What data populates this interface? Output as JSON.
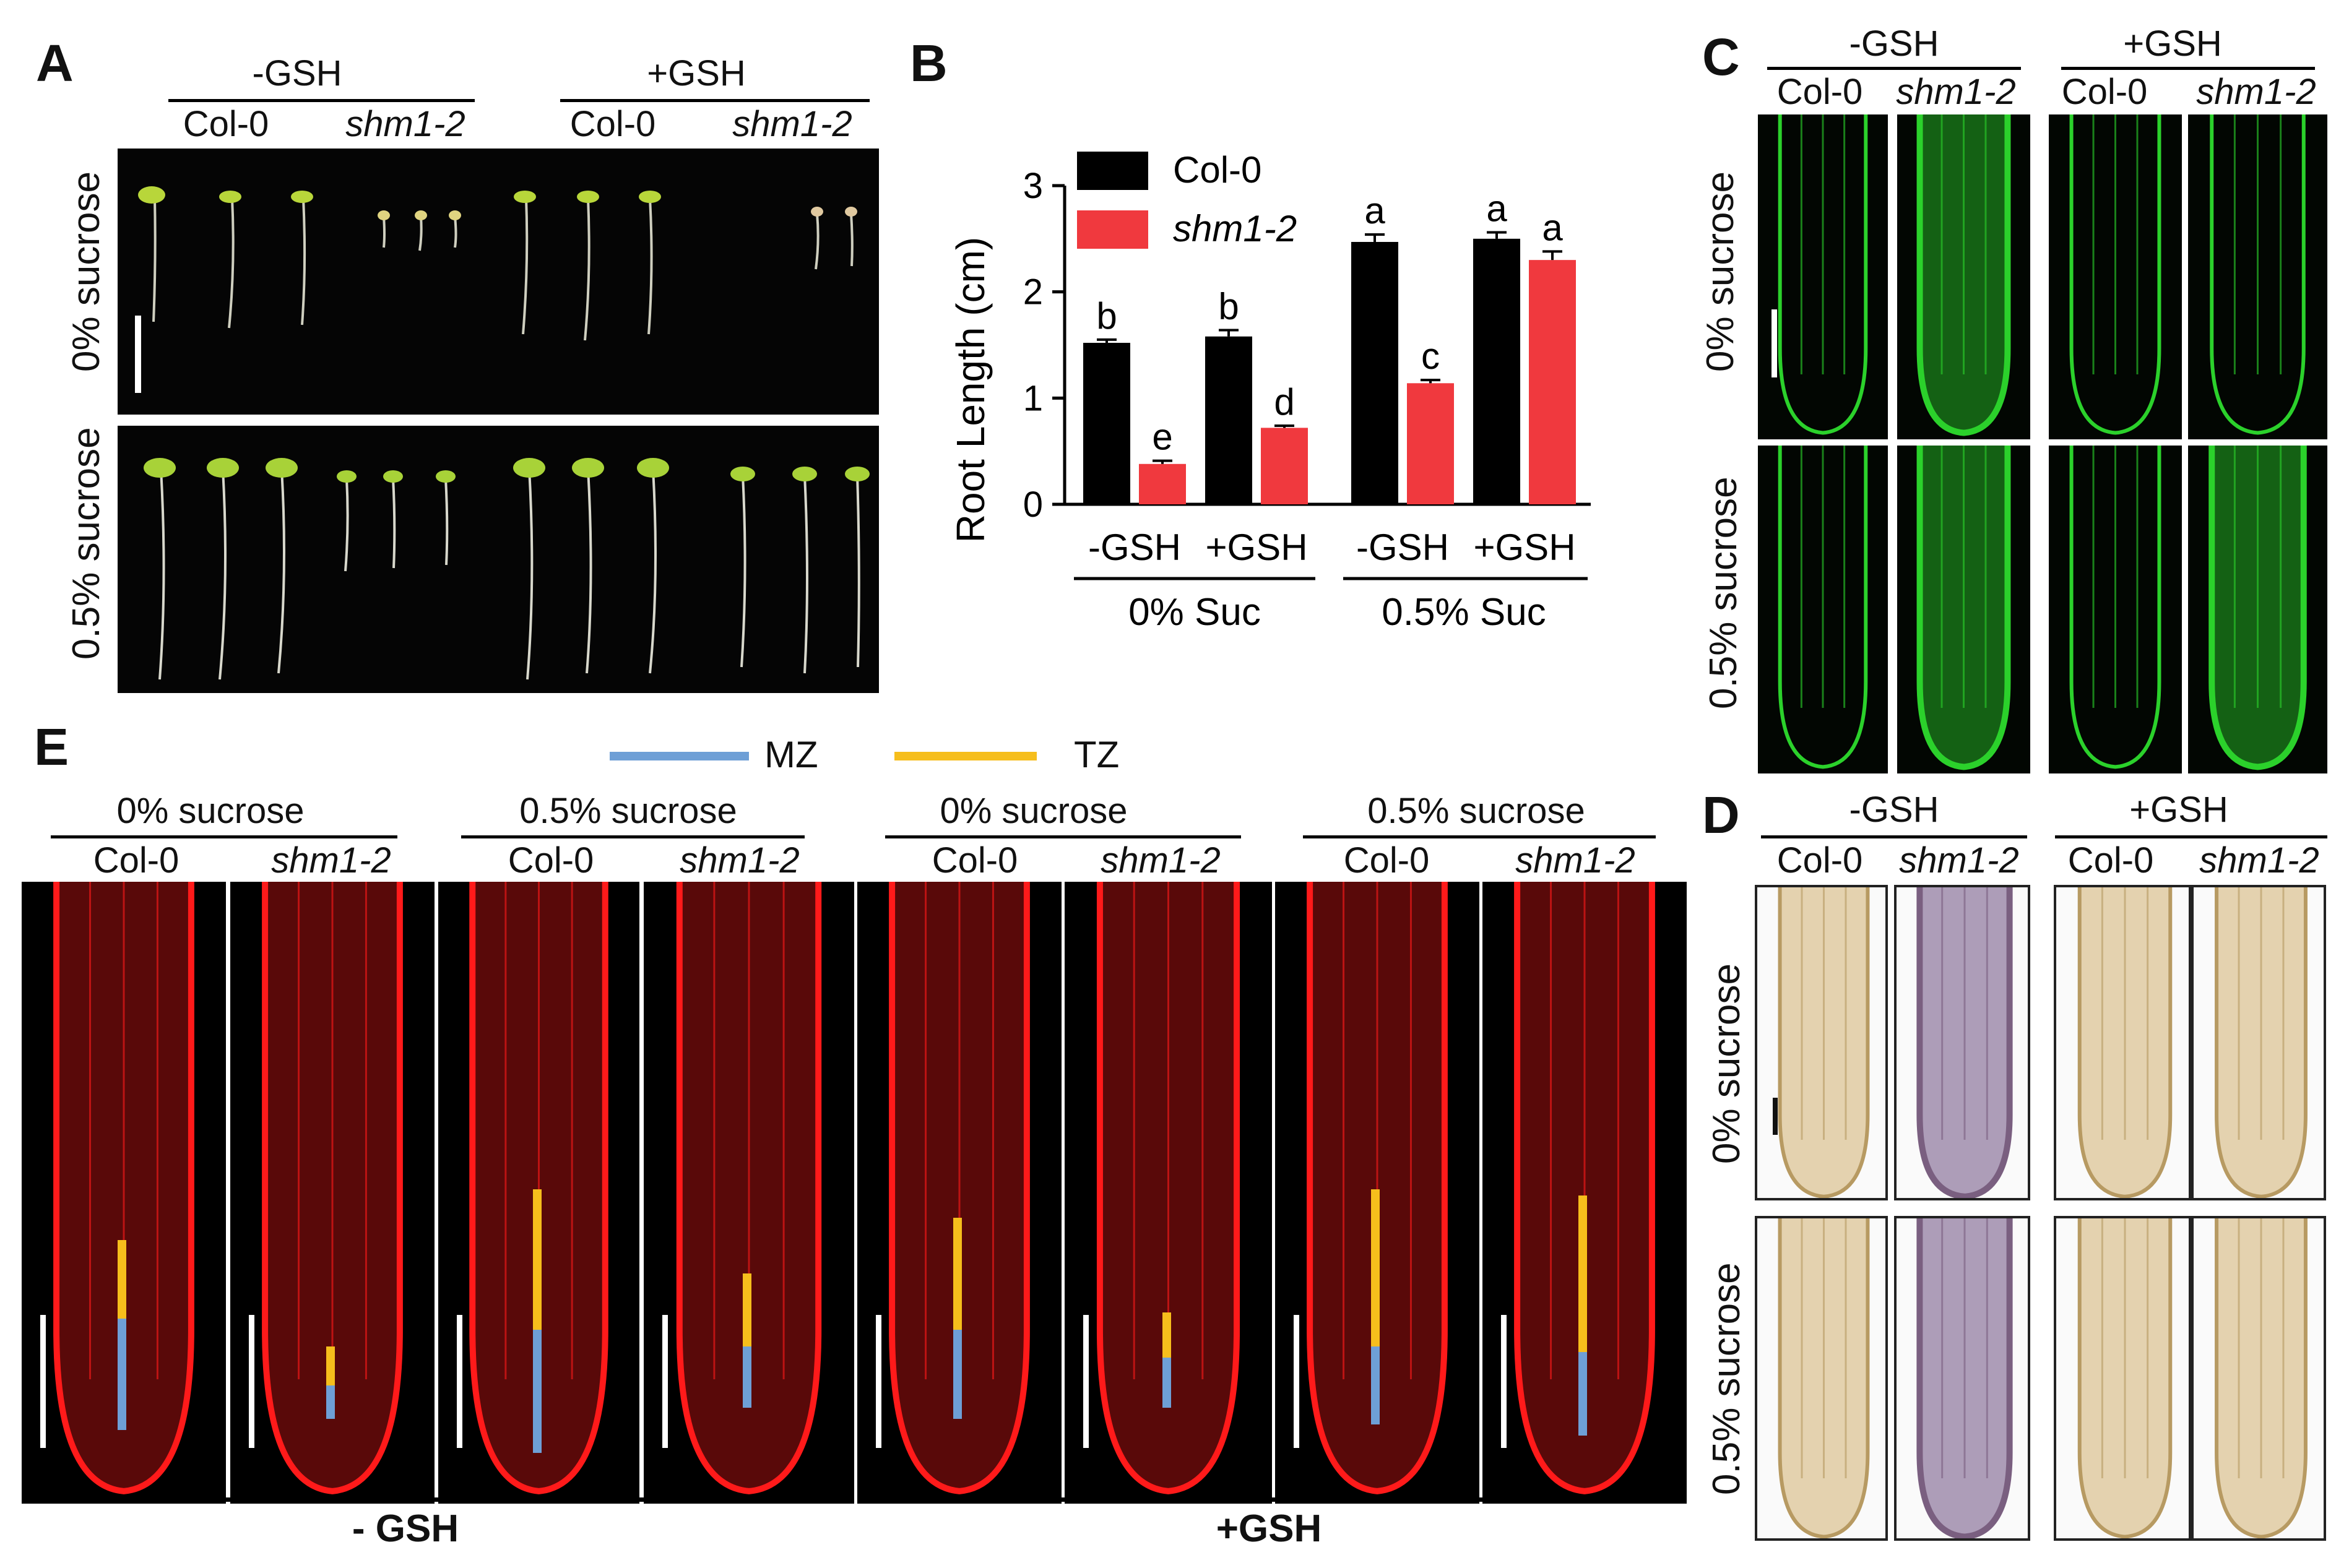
{
  "panels": {
    "A": {
      "letter": "A",
      "treatments": [
        "-GSH",
        "+GSH"
      ],
      "genotypes": [
        "Col-0",
        "shm1-2",
        "Col-0",
        "shm1-2"
      ],
      "rows": [
        "0% sucrose",
        "0.5% sucrose"
      ]
    },
    "B": {
      "letter": "B",
      "legend": [
        "Col-0",
        "shm1-2"
      ],
      "x_sub": [
        "-GSH",
        "+GSH",
        "-GSH",
        "+GSH"
      ],
      "x_groups": [
        "0% Suc",
        "0.5% Suc"
      ]
    },
    "C": {
      "letter": "C",
      "treatments": [
        "-GSH",
        "+GSH"
      ],
      "genotypes": [
        "Col-0",
        "shm1-2",
        "Col-0",
        "shm1-2"
      ],
      "rows": [
        "0% sucrose",
        "0.5% sucrose"
      ]
    },
    "D": {
      "letter": "D",
      "treatments": [
        "-GSH",
        "+GSH"
      ],
      "genotypes": [
        "Col-0",
        "shm1-2",
        "Col-0",
        "shm1-2"
      ],
      "rows": [
        "0% sucrose",
        "0.5% sucrose"
      ]
    },
    "E": {
      "letter": "E",
      "legend": [
        {
          "label": "MZ",
          "color": "#6e9fd6"
        },
        {
          "label": "TZ",
          "color": "#f6be1c"
        }
      ],
      "conditions": [
        "0% sucrose",
        "0.5% sucrose",
        "0% sucrose",
        "0.5% sucrose"
      ],
      "genotypes": [
        "Col-0",
        "shm1-2",
        "Col-0",
        "shm1-2",
        "Col-0",
        "shm1-2",
        "Col-0",
        "shm1-2"
      ],
      "bottom_labels": [
        "- GSH",
        "+GSH"
      ]
    }
  },
  "colors": {
    "col0": "#000000",
    "shm1": "#f0393e",
    "root_red": "#ff1a1a",
    "gfp_green": "#2bd12b",
    "mz": "#6e9fd6",
    "tz": "#f6be1c"
  },
  "chart_data": {
    "type": "bar",
    "ylabel": "Root Length (cm)",
    "ylim": [
      0,
      3
    ],
    "yticks": [
      "0",
      "1",
      "2",
      "3"
    ],
    "categories": [
      "-GSH 0% Suc",
      "+GSH 0% Suc",
      "-GSH 0.5% Suc",
      "+GSH 0.5% Suc"
    ],
    "series": [
      {
        "name": "Col-0",
        "color": "#000000",
        "values": [
          1.52,
          1.58,
          2.47,
          2.5
        ],
        "errors": [
          0.03,
          0.06,
          0.07,
          0.06
        ],
        "letters": [
          "b",
          "b",
          "a",
          "a"
        ]
      },
      {
        "name": "shm1-2",
        "color": "#f0393e",
        "values": [
          0.38,
          0.72,
          1.14,
          2.3
        ],
        "errors": [
          0.03,
          0.02,
          0.03,
          0.08
        ],
        "letters": [
          "e",
          "d",
          "c",
          "a"
        ]
      }
    ]
  }
}
